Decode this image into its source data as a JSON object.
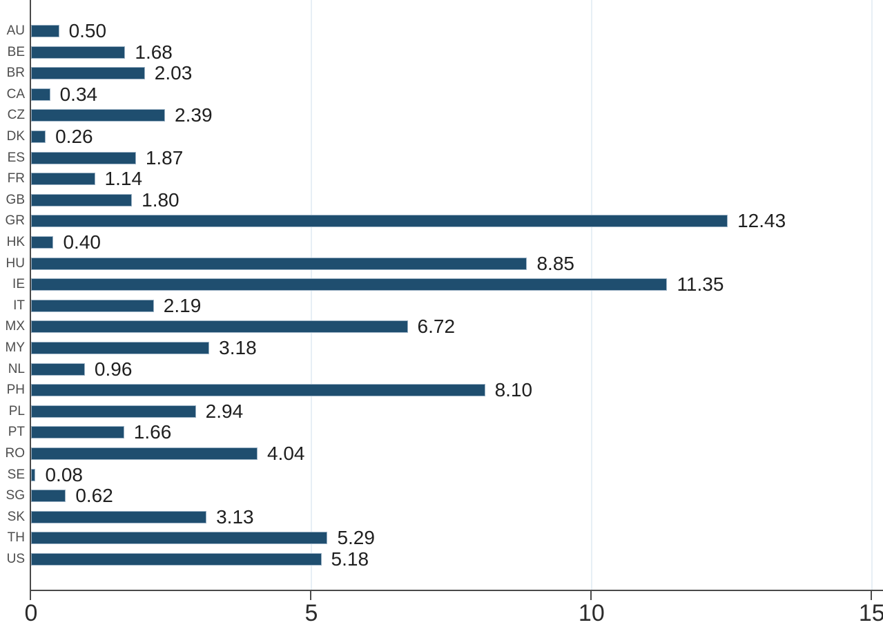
{
  "chart_data": {
    "type": "bar",
    "orientation": "horizontal",
    "title": "",
    "xlabel": "",
    "ylabel": "",
    "categories": [
      "AU",
      "BE",
      "BR",
      "CA",
      "CZ",
      "DK",
      "ES",
      "FR",
      "GB",
      "GR",
      "HK",
      "HU",
      "IE",
      "IT",
      "MX",
      "MY",
      "NL",
      "PH",
      "PL",
      "PT",
      "RO",
      "SE",
      "SG",
      "SK",
      "TH",
      "US"
    ],
    "values": [
      0.5,
      1.68,
      2.03,
      0.34,
      2.39,
      0.26,
      1.87,
      1.14,
      1.8,
      12.43,
      0.4,
      8.85,
      11.35,
      2.19,
      6.72,
      3.18,
      0.96,
      8.1,
      2.94,
      1.66,
      4.04,
      0.08,
      0.62,
      3.13,
      5.29,
      5.18
    ],
    "value_labels": [
      "0.50",
      "1.68",
      "2.03",
      "0.34",
      "2.39",
      "0.26",
      "1.87",
      "1.14",
      "1.80",
      "12.43",
      "0.40",
      "8.85",
      "11.35",
      "2.19",
      "6.72",
      "3.18",
      "0.96",
      "8.10",
      "2.94",
      "1.66",
      "4.04",
      "0.08",
      "0.62",
      "3.13",
      "5.29",
      "5.18"
    ],
    "x_ticks": [
      0,
      5,
      10,
      15
    ],
    "x_tick_labels": [
      "0",
      "5",
      "10",
      "15"
    ],
    "x_gridlines": [
      5,
      10,
      15
    ],
    "xlim": [
      0,
      15.2
    ],
    "grid": "vertical-light",
    "legend": "none"
  },
  "colors": {
    "bar_fill": "#1f4e6f",
    "bar_border": "#9ab1c4",
    "gridline": "#e7eff5",
    "axis_line": "#4a4a4a",
    "category_label": "#4d4d4d",
    "value_label": "#1f1f1f",
    "tick_label": "#2b2b2b",
    "background": "#ffffff"
  }
}
